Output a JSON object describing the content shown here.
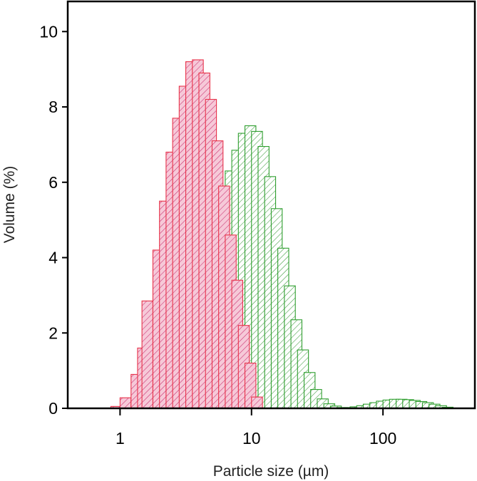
{
  "chart_data": {
    "type": "bar",
    "title": "",
    "xlabel": "Particle size (µm)",
    "ylabel": "Volume (%)",
    "x_scale": "log",
    "xlim": [
      0.4,
      500
    ],
    "ylim": [
      0,
      10.8
    ],
    "x_ticks": [
      1,
      10,
      100
    ],
    "x_tick_labels": [
      "1",
      "10",
      "100"
    ],
    "y_ticks": [
      0,
      2,
      4,
      6,
      8,
      10
    ],
    "y_tick_labels": [
      "0",
      "2",
      "4",
      "6",
      "8",
      "10"
    ],
    "grid": false,
    "legend": false,
    "bins_per_decade": 12,
    "series": [
      {
        "color": "#e8334a",
        "fill": "#f6c9d8",
        "hatch": "#c92a6e",
        "bins": [
          {
            "left": 0.851,
            "value": 0.05
          },
          {
            "left": 1.0,
            "value": 0.28
          },
          {
            "left": 1.212,
            "value": 0.9
          },
          {
            "left": 1.359,
            "value": 1.6
          },
          {
            "left": 1.468,
            "value": 2.85
          },
          {
            "left": 1.778,
            "value": 4.2
          },
          {
            "left": 1.995,
            "value": 5.5
          },
          {
            "left": 2.239,
            "value": 6.8
          },
          {
            "left": 2.512,
            "value": 7.7
          },
          {
            "left": 2.818,
            "value": 8.55
          },
          {
            "left": 3.162,
            "value": 9.2
          },
          {
            "left": 3.548,
            "value": 9.25
          },
          {
            "left": 3.981,
            "value": 8.9
          },
          {
            "left": 4.467,
            "value": 8.2
          },
          {
            "left": 5.012,
            "value": 7.1
          },
          {
            "left": 5.623,
            "value": 5.9
          },
          {
            "left": 6.31,
            "value": 4.6
          },
          {
            "left": 7.079,
            "value": 3.4
          },
          {
            "left": 7.943,
            "value": 2.2
          },
          {
            "left": 8.913,
            "value": 1.2
          },
          {
            "left": 10.0,
            "value": 0.3
          }
        ]
      },
      {
        "color": "#2e9e2e",
        "fill": "#ffffff",
        "hatch": "#3a9a3a",
        "bins": [
          {
            "left": 5.623,
            "value": 5.9
          },
          {
            "left": 6.31,
            "value": 6.3
          },
          {
            "left": 7.079,
            "value": 6.85
          },
          {
            "left": 7.943,
            "value": 7.3
          },
          {
            "left": 8.913,
            "value": 7.5
          },
          {
            "left": 10.0,
            "value": 7.35
          },
          {
            "left": 11.22,
            "value": 6.95
          },
          {
            "left": 12.589,
            "value": 6.15
          },
          {
            "left": 14.125,
            "value": 5.3
          },
          {
            "left": 15.849,
            "value": 4.25
          },
          {
            "left": 17.783,
            "value": 3.25
          },
          {
            "left": 19.953,
            "value": 2.35
          },
          {
            "left": 22.387,
            "value": 1.55
          },
          {
            "left": 25.119,
            "value": 0.95
          },
          {
            "left": 28.184,
            "value": 0.5
          },
          {
            "left": 31.623,
            "value": 0.25
          },
          {
            "left": 35.481,
            "value": 0.12
          },
          {
            "left": 39.811,
            "value": 0.06
          },
          {
            "left": 44.668,
            "value": 0.02
          },
          {
            "left": 50.119,
            "value": 0.02
          },
          {
            "left": 56.234,
            "value": 0.04
          },
          {
            "left": 63.096,
            "value": 0.07
          },
          {
            "left": 70.795,
            "value": 0.11
          },
          {
            "left": 79.433,
            "value": 0.15
          },
          {
            "left": 89.125,
            "value": 0.19
          },
          {
            "left": 100.0,
            "value": 0.22
          },
          {
            "left": 112.202,
            "value": 0.24
          },
          {
            "left": 125.893,
            "value": 0.24
          },
          {
            "left": 141.254,
            "value": 0.23
          },
          {
            "left": 158.489,
            "value": 0.21
          },
          {
            "left": 177.828,
            "value": 0.18
          },
          {
            "left": 199.526,
            "value": 0.15
          },
          {
            "left": 223.872,
            "value": 0.11
          },
          {
            "left": 251.189,
            "value": 0.07
          },
          {
            "left": 281.838,
            "value": 0.03
          }
        ]
      }
    ]
  }
}
